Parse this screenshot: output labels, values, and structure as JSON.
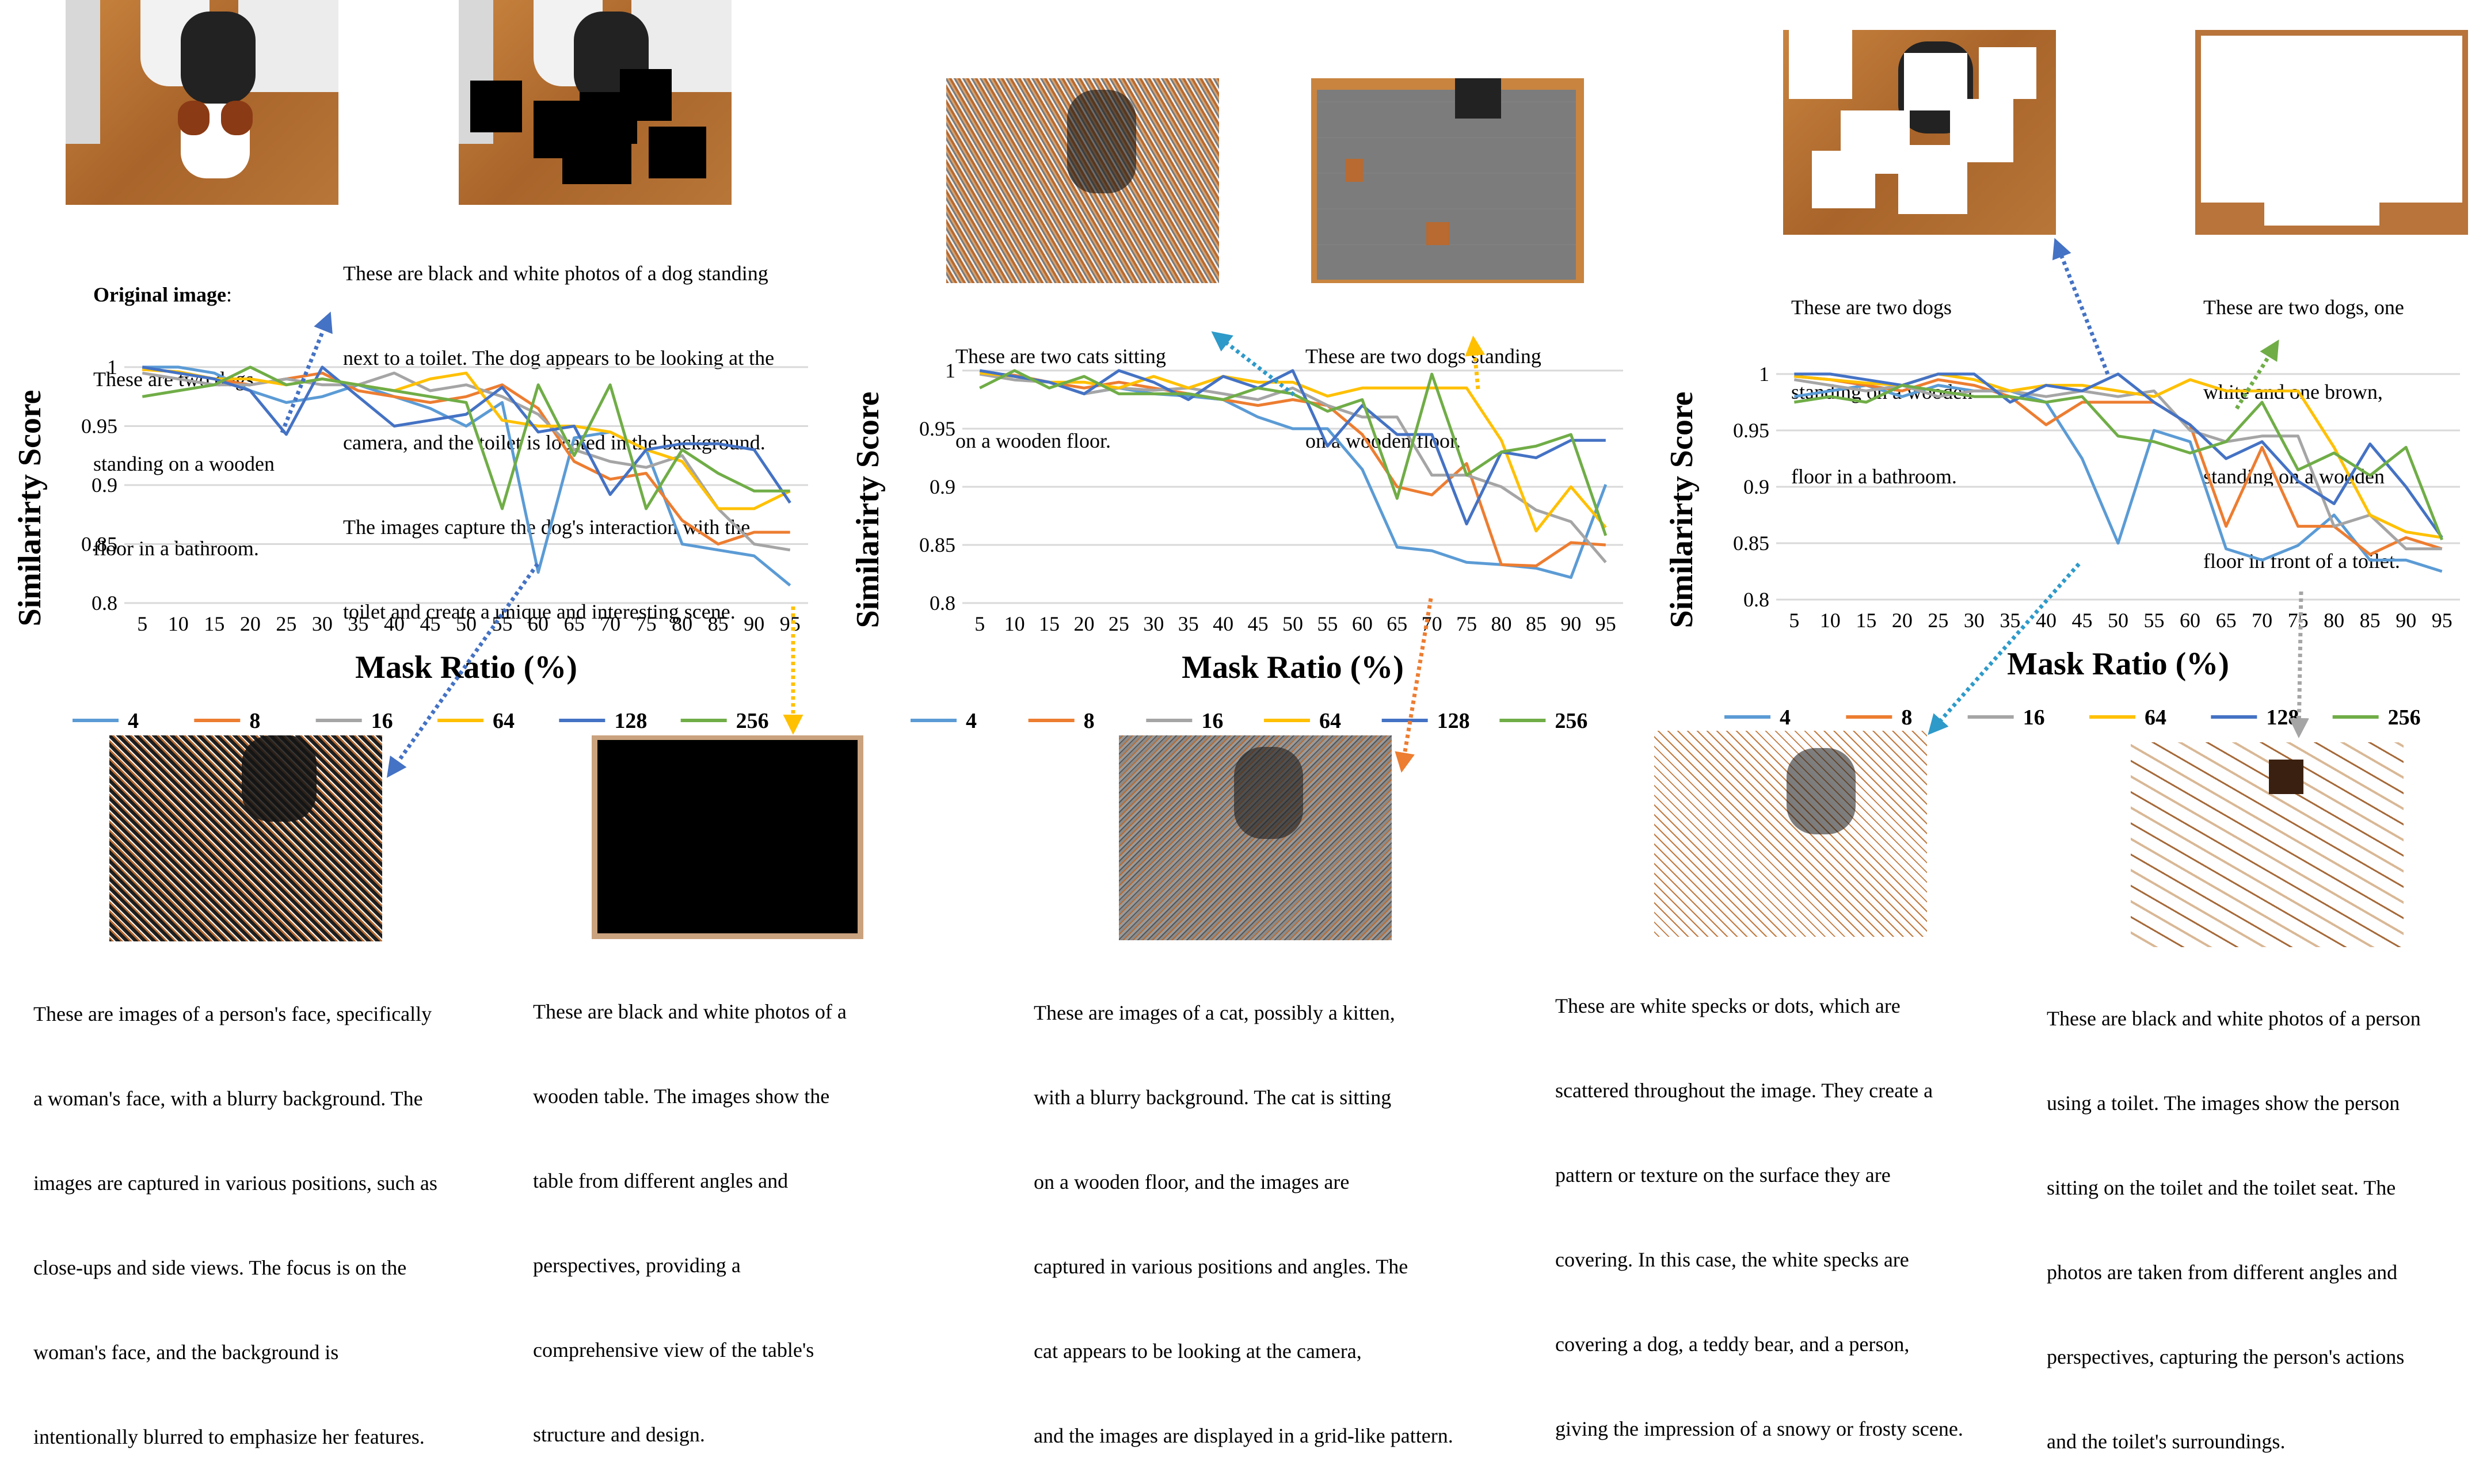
{
  "colors": {
    "4": "#5b9bd5",
    "8": "#ed7d31",
    "16": "#a5a5a5",
    "64": "#ffc000",
    "128": "#4472c4",
    "256": "#70ad47"
  },
  "captions": {
    "p1_top_left_bold": "Original image",
    "p1_top_left_lines": [
      "These are two dogs",
      "standing on a wooden",
      "floor in a bathroom."
    ],
    "p1_top_right_lines": [
      "These are black and white photos of a dog standing",
      "next to a toilet. The dog appears to be looking at the",
      "camera, and the toilet is located in the background.",
      "The images capture the dog's interaction with the",
      "toilet and create a unique and interesting scene."
    ],
    "p1_bottom_left_lines": [
      "These are images of a person's face, specifically",
      "a woman's face, with a blurry background. The",
      "images are captured in various positions, such as",
      "close-ups and side views. The focus is on the",
      "woman's face, and the background is",
      "intentionally blurred to emphasize her features."
    ],
    "p1_bottom_right_lines": [
      "These are black and white photos of a",
      "wooden table. The images show the",
      "table from different angles and",
      "perspectives, providing a",
      "comprehensive view of the table's",
      "structure and design."
    ],
    "p2_top_left_lines": [
      "These are two cats sitting",
      "on a wooden floor."
    ],
    "p2_top_right_lines": [
      "These are two dogs standing",
      "on a wooden floor."
    ],
    "p2_bottom_lines": [
      "These are images of a cat, possibly a kitten,",
      "with a blurry background. The cat is sitting",
      "on a wooden floor, and the images are",
      "captured in various positions and angles. The",
      "cat appears to be looking at the camera,",
      "and the images are displayed in a grid-like pattern."
    ],
    "p3_top_left_lines": [
      "These are two dogs",
      "standing on a wooden",
      "floor in a bathroom."
    ],
    "p3_top_right_lines": [
      "These are two dogs, one",
      "white and one brown,",
      "standing on a wooden",
      "floor in front of a toilet."
    ],
    "p3_bottom_left_lines": [
      "These are white specks or dots, which are",
      "scattered throughout the image. They create a",
      "pattern or texture on the surface they are",
      "covering. In this case, the white specks are",
      "covering a dog, a teddy bear, and a person,",
      "giving the impression of a snowy or frosty scene."
    ],
    "p3_bottom_right_lines": [
      "These are black and white photos of a person",
      "using a toilet. The images show the person",
      "sitting on the toilet and the toilet seat. The",
      "photos are taken from different angles and",
      "perspectives, capturing the person's actions",
      "and the toilet's surroundings."
    ]
  },
  "chart_data": [
    {
      "type": "line",
      "xlabel": "Mask Ratio (%)",
      "ylabel": "Similarirty Score",
      "x": [
        5,
        10,
        15,
        20,
        25,
        30,
        35,
        40,
        45,
        50,
        55,
        60,
        65,
        70,
        75,
        80,
        85,
        90,
        95
      ],
      "ylim": [
        0.8,
        1
      ],
      "yticks": [
        "0.8",
        "0.85",
        "0.9",
        "0.95",
        "1"
      ],
      "grid": true,
      "legend_position": "bottom",
      "series": [
        {
          "name": "4",
          "color": "#5b9bd5",
          "values": [
            1,
            1,
            0.995,
            0.98,
            0.97,
            0.975,
            0.985,
            0.975,
            0.965,
            0.95,
            0.97,
            0.826,
            0.94,
            0.945,
            0.93,
            0.85,
            0.845,
            0.84,
            0.815
          ]
        },
        {
          "name": "8",
          "color": "#ed7d31",
          "values": [
            0.998,
            0.996,
            0.99,
            0.985,
            0.99,
            0.995,
            0.98,
            0.975,
            0.97,
            0.975,
            0.985,
            0.965,
            0.92,
            0.905,
            0.91,
            0.87,
            0.85,
            0.86,
            0.86
          ]
        },
        {
          "name": "16",
          "color": "#a5a5a5",
          "values": [
            0.995,
            0.99,
            0.985,
            0.985,
            0.99,
            0.985,
            0.985,
            0.995,
            0.98,
            0.985,
            0.975,
            0.96,
            0.93,
            0.92,
            0.915,
            0.925,
            0.88,
            0.85,
            0.845
          ]
        },
        {
          "name": "64",
          "color": "#ffc000",
          "values": [
            0.998,
            0.996,
            0.99,
            0.99,
            0.985,
            0.99,
            0.985,
            0.98,
            0.99,
            0.995,
            0.955,
            0.95,
            0.95,
            0.945,
            0.93,
            0.92,
            0.88,
            0.88,
            0.895
          ]
        },
        {
          "name": "128",
          "color": "#4472c4",
          "values": [
            1,
            0.995,
            0.99,
            0.98,
            0.943,
            1,
            0.975,
            0.95,
            0.955,
            0.96,
            0.983,
            0.945,
            0.95,
            0.892,
            0.93,
            0.935,
            0.935,
            0.93,
            0.885
          ]
        },
        {
          "name": "256",
          "color": "#70ad47",
          "values": [
            0.975,
            0.98,
            0.985,
            1,
            0.985,
            0.99,
            0.985,
            0.98,
            0.975,
            0.97,
            0.88,
            0.985,
            0.925,
            0.985,
            0.88,
            0.93,
            0.91,
            0.895,
            0.895
          ]
        }
      ]
    },
    {
      "type": "line",
      "xlabel": "Mask Ratio (%)",
      "ylabel": "Similarirty Score",
      "x": [
        5,
        10,
        15,
        20,
        25,
        30,
        35,
        40,
        45,
        50,
        55,
        60,
        65,
        70,
        75,
        80,
        85,
        90,
        95
      ],
      "ylim": [
        0.8,
        1
      ],
      "yticks": [
        "0.8",
        "0.85",
        "0.9",
        "0.95",
        "1"
      ],
      "grid": true,
      "legend_position": "bottom",
      "series": [
        {
          "name": "4",
          "color": "#5b9bd5",
          "values": [
            0.998,
            0.995,
            0.99,
            0.98,
            0.985,
            0.98,
            0.978,
            0.975,
            0.96,
            0.95,
            0.95,
            0.915,
            0.848,
            0.845,
            0.835,
            0.833,
            0.83,
            0.822,
            0.902
          ]
        },
        {
          "name": "8",
          "color": "#ed7d31",
          "values": [
            0.998,
            0.996,
            0.99,
            0.985,
            0.99,
            0.985,
            0.98,
            0.975,
            0.97,
            0.975,
            0.97,
            0.945,
            0.9,
            0.893,
            0.92,
            0.833,
            0.832,
            0.852,
            0.85
          ]
        },
        {
          "name": "16",
          "color": "#a5a5a5",
          "values": [
            0.997,
            0.992,
            0.99,
            0.98,
            0.985,
            0.983,
            0.985,
            0.98,
            0.975,
            0.985,
            0.97,
            0.96,
            0.96,
            0.91,
            0.91,
            0.9,
            0.88,
            0.87,
            0.835
          ]
        },
        {
          "name": "64",
          "color": "#ffc000",
          "values": [
            0.998,
            0.995,
            0.99,
            0.99,
            0.985,
            0.995,
            0.985,
            0.995,
            0.99,
            0.99,
            0.978,
            0.985,
            0.985,
            0.985,
            0.985,
            0.94,
            0.862,
            0.9,
            0.865
          ]
        },
        {
          "name": "128",
          "color": "#4472c4",
          "values": [
            1,
            0.995,
            0.99,
            0.98,
            1,
            0.99,
            0.975,
            0.995,
            0.985,
            1,
            0.935,
            0.97,
            0.945,
            0.945,
            0.868,
            0.93,
            0.925,
            0.94,
            0.94
          ]
        },
        {
          "name": "256",
          "color": "#70ad47",
          "values": [
            0.985,
            1,
            0.985,
            0.995,
            0.98,
            0.98,
            0.98,
            0.975,
            0.985,
            0.98,
            0.965,
            0.975,
            0.89,
            0.997,
            0.91,
            0.93,
            0.935,
            0.945,
            0.858
          ]
        }
      ]
    },
    {
      "type": "line",
      "xlabel": "Mask Ratio (%)",
      "ylabel": "Similarirty Score",
      "x": [
        5,
        10,
        15,
        20,
        25,
        30,
        35,
        40,
        45,
        50,
        55,
        60,
        65,
        70,
        75,
        80,
        85,
        90,
        95
      ],
      "ylim": [
        0.8,
        1
      ],
      "yticks": [
        "0.8",
        "0.85",
        "0.9",
        "0.95",
        "1"
      ],
      "grid": true,
      "legend_position": "bottom",
      "series": [
        {
          "name": "4",
          "color": "#5b9bd5",
          "values": [
            0.98,
            0.985,
            0.99,
            0.98,
            0.99,
            0.985,
            0.985,
            0.975,
            0.925,
            0.85,
            0.95,
            0.94,
            0.845,
            0.835,
            0.848,
            0.875,
            0.835,
            0.835,
            0.825
          ]
        },
        {
          "name": "8",
          "color": "#ed7d31",
          "values": [
            0.998,
            0.995,
            0.99,
            0.985,
            0.995,
            0.99,
            0.98,
            0.955,
            0.975,
            0.975,
            0.975,
            0.955,
            0.865,
            0.935,
            0.865,
            0.865,
            0.84,
            0.855,
            0.845
          ]
        },
        {
          "name": "16",
          "color": "#a5a5a5",
          "values": [
            0.995,
            0.99,
            0.985,
            0.99,
            0.98,
            0.985,
            0.985,
            0.98,
            0.985,
            0.98,
            0.985,
            0.95,
            0.94,
            0.945,
            0.945,
            0.865,
            0.875,
            0.845,
            0.845
          ]
        },
        {
          "name": "64",
          "color": "#ffc000",
          "values": [
            0.998,
            0.995,
            0.992,
            0.99,
            1,
            0.995,
            0.985,
            0.99,
            0.99,
            0.985,
            0.98,
            0.995,
            0.985,
            0.985,
            0.985,
            0.935,
            0.875,
            0.86,
            0.855
          ]
        },
        {
          "name": "128",
          "color": "#4472c4",
          "values": [
            1,
            1,
            0.995,
            0.99,
            1,
            1,
            0.975,
            0.99,
            0.985,
            1,
            0.975,
            0.955,
            0.925,
            0.94,
            0.905,
            0.885,
            0.938,
            0.9,
            0.855
          ]
        },
        {
          "name": "256",
          "color": "#70ad47",
          "values": [
            0.975,
            0.98,
            0.975,
            0.99,
            0.985,
            0.98,
            0.98,
            0.975,
            0.98,
            0.945,
            0.94,
            0.93,
            0.94,
            0.975,
            0.915,
            0.93,
            0.91,
            0.935,
            0.853
          ]
        }
      ]
    }
  ]
}
